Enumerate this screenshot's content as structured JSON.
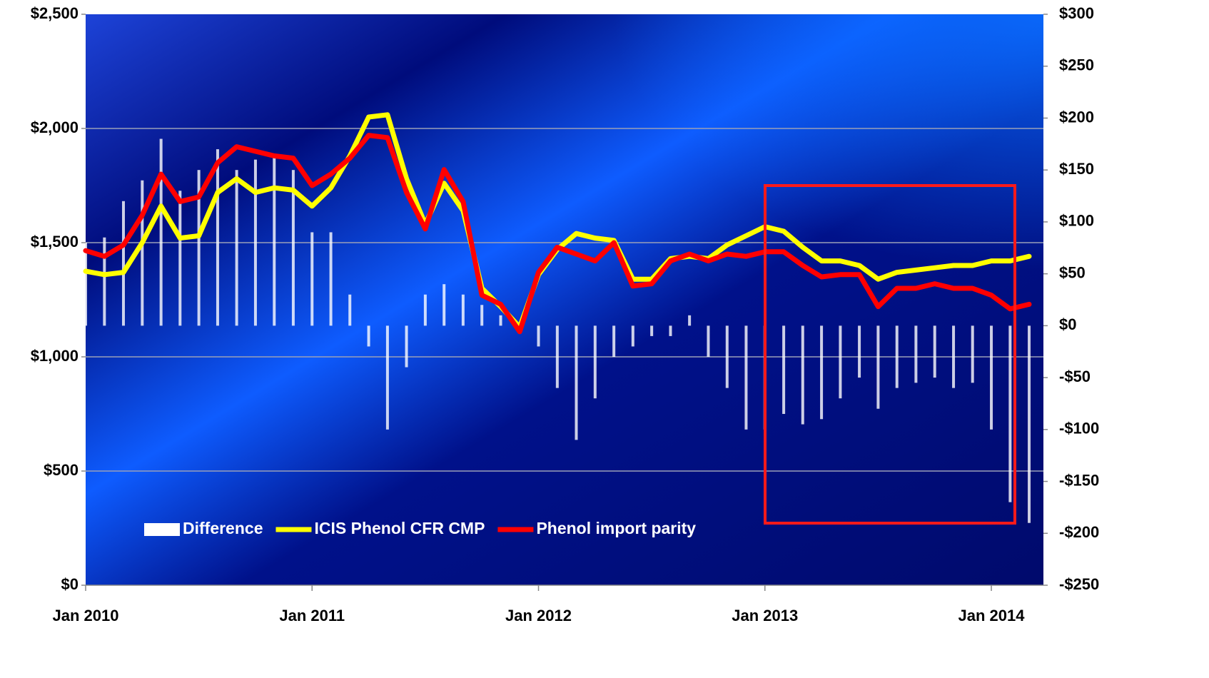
{
  "chart_data": {
    "type": "line",
    "x": [
      2010,
      2010.083,
      2010.167,
      2010.25,
      2010.333,
      2010.417,
      2010.5,
      2010.583,
      2010.667,
      2010.75,
      2010.833,
      2010.917,
      2011,
      2011.083,
      2011.167,
      2011.25,
      2011.333,
      2011.417,
      2011.5,
      2011.583,
      2011.667,
      2011.75,
      2011.833,
      2011.917,
      2012,
      2012.083,
      2012.167,
      2012.25,
      2012.333,
      2012.417,
      2012.5,
      2012.583,
      2012.667,
      2012.75,
      2012.833,
      2012.917,
      2013,
      2013.083,
      2013.167,
      2013.25,
      2013.333,
      2013.417,
      2013.5,
      2013.583,
      2013.667,
      2013.75,
      2013.833,
      2013.917,
      2014,
      2014.083,
      2014.167
    ],
    "series": [
      {
        "name": "Difference",
        "kind": "bar",
        "axis": "y2",
        "color": "#ffffff",
        "values": [
          80,
          85,
          120,
          140,
          180,
          130,
          150,
          170,
          150,
          160,
          165,
          150,
          90,
          90,
          30,
          -20,
          -100,
          -40,
          30,
          40,
          30,
          20,
          10,
          0,
          -20,
          -60,
          -110,
          -70,
          -30,
          -20,
          -10,
          -10,
          10,
          -30,
          -60,
          -100,
          -100,
          -85,
          -95,
          -90,
          -70,
          -50,
          -80,
          -60,
          -55,
          -50,
          -60,
          -55,
          -100,
          -170,
          -190
        ]
      },
      {
        "name": "ICIS Phenol CFR CMP",
        "kind": "line",
        "color": "#ffff00",
        "values": [
          1375,
          1360,
          1370,
          1500,
          1660,
          1520,
          1530,
          1720,
          1780,
          1720,
          1740,
          1730,
          1660,
          1740,
          1880,
          2050,
          2060,
          1780,
          1580,
          1760,
          1640,
          1300,
          1220,
          1130,
          1360,
          1470,
          1540,
          1520,
          1510,
          1340,
          1340,
          1430,
          1440,
          1430,
          1490,
          1530,
          1570,
          1550,
          1480,
          1420,
          1420,
          1400,
          1340,
          1370,
          1380,
          1390,
          1400,
          1400,
          1420,
          1420,
          1440
        ]
      },
      {
        "name": "Phenol import parity",
        "kind": "line",
        "color": "#ff0000",
        "values": [
          1465,
          1440,
          1490,
          1620,
          1800,
          1680,
          1700,
          1850,
          1920,
          1900,
          1880,
          1870,
          1750,
          1800,
          1870,
          1970,
          1960,
          1720,
          1560,
          1820,
          1680,
          1270,
          1230,
          1110,
          1370,
          1480,
          1450,
          1420,
          1500,
          1310,
          1320,
          1420,
          1450,
          1420,
          1450,
          1440,
          1460,
          1460,
          1400,
          1350,
          1360,
          1360,
          1220,
          1300,
          1300,
          1320,
          1300,
          1300,
          1270,
          1210,
          1230
        ]
      }
    ],
    "xlim": [
      2010,
      2014.23
    ],
    "xticks": [
      {
        "value": 2010,
        "label": "Jan 2010"
      },
      {
        "value": 2011,
        "label": "Jan 2011"
      },
      {
        "value": 2012,
        "label": "Jan 2012"
      },
      {
        "value": 2013,
        "label": "Jan 2013"
      },
      {
        "value": 2014,
        "label": "Jan 2014"
      }
    ],
    "ylim": [
      0,
      2500
    ],
    "yticks": [
      {
        "value": 0,
        "label": "$0"
      },
      {
        "value": 500,
        "label": "$500"
      },
      {
        "value": 1000,
        "label": "$1,000"
      },
      {
        "value": 1500,
        "label": "$1,500"
      },
      {
        "value": 2000,
        "label": "$2,000"
      },
      {
        "value": 2500,
        "label": "$2,500"
      }
    ],
    "y2lim": [
      -250,
      300
    ],
    "y2ticks": [
      {
        "value": -250,
        "label": "-$250"
      },
      {
        "value": -200,
        "label": "-$200"
      },
      {
        "value": -150,
        "label": "-$150"
      },
      {
        "value": -100,
        "label": "-$100"
      },
      {
        "value": -50,
        "label": "-$50"
      },
      {
        "value": 0,
        "label": "$0"
      },
      {
        "value": 50,
        "label": "$50"
      },
      {
        "value": 100,
        "label": "$100"
      },
      {
        "value": 150,
        "label": "$150"
      },
      {
        "value": 200,
        "label": "$200"
      },
      {
        "value": 250,
        "label": "$250"
      },
      {
        "value": 300,
        "label": "$300"
      }
    ],
    "grid": true,
    "legend": "lower left"
  }
}
